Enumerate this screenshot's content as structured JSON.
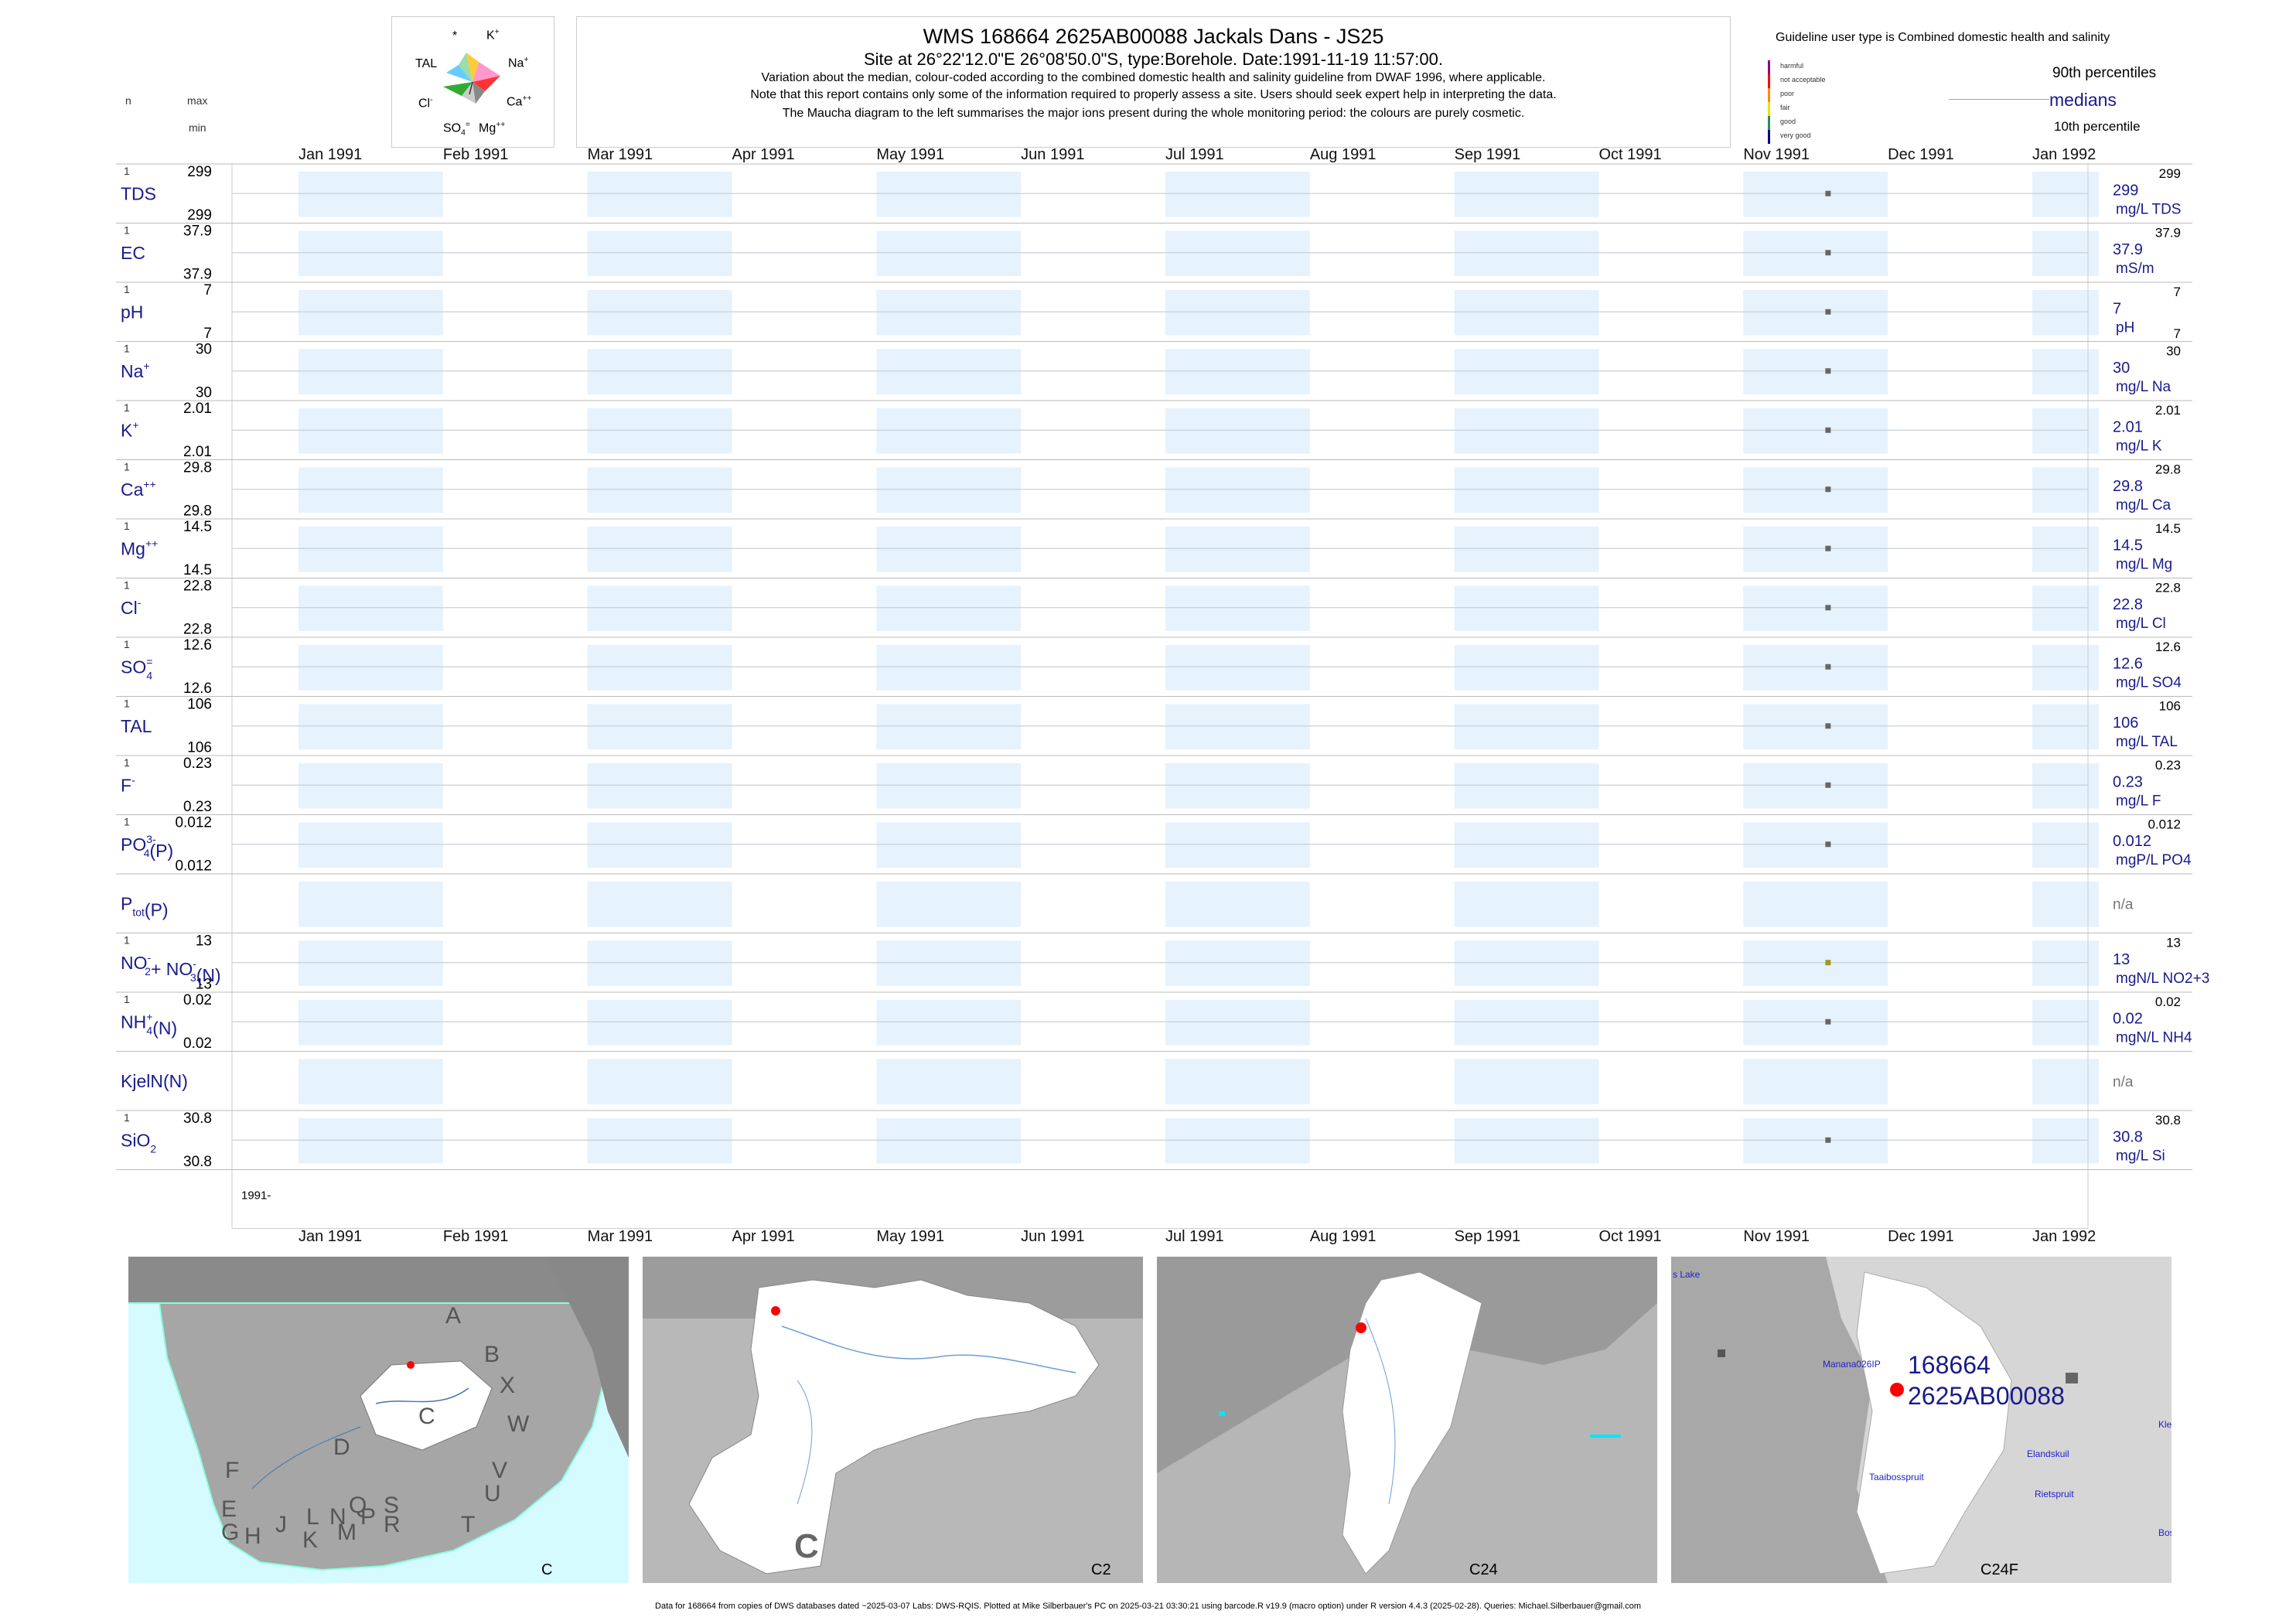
{
  "header": {
    "title": "WMS 168664 2625AB00088 Jackals Dans - JS25",
    "site": "Site at 26°22'12.0\"E 26°08'50.0\"S, type:Borehole. Date:1991-11-19 11:57:00.",
    "note1": "Variation about the median,  colour-coded according to the combined domestic health and salinity guideline from DWAF 1996, where applicable.",
    "note2": "Note that this report contains only some of the information required to properly assess a site. Users should seek expert help in interpreting the data.",
    "note3": "The Maucha diagram to the left summarises the major ions present during the whole monitoring period: the colours are purely cosmetic."
  },
  "left_labels": {
    "n": "n",
    "max": "max",
    "min": "min"
  },
  "maucha": {
    "k": "K",
    "star": "*",
    "tal": "TAL",
    "na": "Na",
    "cl": "Cl",
    "ca": "Ca",
    "so4": "SO",
    "mg": "Mg"
  },
  "guideline": {
    "title": "Guideline user type is Combined domestic health and salinity",
    "levels": [
      "harmful",
      "not acceptable",
      "poor",
      "fair",
      "good",
      "very good"
    ],
    "level_colors": [
      "#8b008b",
      "#ff0000",
      "#ff8c00",
      "#f0e000",
      "#2e8b57",
      "#00008b"
    ],
    "p90": "90th percentiles",
    "medians": "medians",
    "p10": "10th percentile"
  },
  "chart_data": {
    "type": "scatter",
    "x_range": [
      "1991-01-01",
      "1992-01-01"
    ],
    "x_ticks": [
      "Jan 1991",
      "Feb 1991",
      "Mar 1991",
      "Apr 1991",
      "May 1991",
      "Jun 1991",
      "Jul 1991",
      "Aug 1991",
      "Sep 1991",
      "Oct 1991",
      "Nov 1991",
      "Dec 1991",
      "Jan 1992"
    ],
    "sample_date": "1991-11-19",
    "year_label": "1991-",
    "shaded_months": [
      "Jan 1991",
      "Mar 1991",
      "May 1991",
      "Jul 1991",
      "Sep 1991",
      "Nov 1991",
      "Jan 1992"
    ],
    "rows": [
      {
        "name": "TDS",
        "n": "1",
        "max": "299",
        "min": "299",
        "median": "299",
        "unit": "mg/L TDS",
        "p90": "299",
        "p10": "",
        "point_color": "#666666"
      },
      {
        "name": "EC",
        "n": "1",
        "max": "37.9",
        "min": "37.9",
        "median": "37.9",
        "unit": "mS/m",
        "p90": "37.9",
        "p10": "",
        "point_color": "#666666"
      },
      {
        "name": "pH",
        "n": "1",
        "max": "7",
        "min": "7",
        "median": "7",
        "unit": "pH",
        "p90": "7",
        "p10": "7",
        "point_color": "#666666"
      },
      {
        "name": "Na",
        "sup": "+",
        "n": "1",
        "max": "30",
        "min": "30",
        "median": "30",
        "unit": "mg/L Na",
        "p90": "30",
        "p10": "",
        "point_color": "#666666"
      },
      {
        "name": "K",
        "sup": "+",
        "n": "1",
        "max": "2.01",
        "min": "2.01",
        "median": "2.01",
        "unit": "mg/L K",
        "p90": "2.01",
        "p10": "",
        "point_color": "#666666"
      },
      {
        "name": "Ca",
        "sup": "++",
        "n": "1",
        "max": "29.8",
        "min": "29.8",
        "median": "29.8",
        "unit": "mg/L Ca",
        "p90": "29.8",
        "p10": "",
        "point_color": "#666666"
      },
      {
        "name": "Mg",
        "sup": "++",
        "n": "1",
        "max": "14.5",
        "min": "14.5",
        "median": "14.5",
        "unit": "mg/L Mg",
        "p90": "14.5",
        "p10": "",
        "point_color": "#666666"
      },
      {
        "name": "Cl",
        "sup": "-",
        "n": "1",
        "max": "22.8",
        "min": "22.8",
        "median": "22.8",
        "unit": "mg/L Cl",
        "p90": "22.8",
        "p10": "",
        "point_color": "#666666"
      },
      {
        "name": "SO",
        "sub": "4",
        "sup": "=",
        "n": "1",
        "max": "12.6",
        "min": "12.6",
        "median": "12.6",
        "unit": "mg/L SO4",
        "p90": "12.6",
        "p10": "",
        "point_color": "#666666"
      },
      {
        "name": "TAL",
        "n": "1",
        "max": "106",
        "min": "106",
        "median": "106",
        "unit": "mg/L TAL",
        "p90": "106",
        "p10": "",
        "point_color": "#666666"
      },
      {
        "name": "F",
        "sup": "-",
        "n": "1",
        "max": "0.23",
        "min": "0.23",
        "median": "0.23",
        "unit": "mg/L F",
        "p90": "0.23",
        "p10": "",
        "point_color": "#666666"
      },
      {
        "name": "PO",
        "sub": "4",
        "sup": "3-",
        "suffix": "(P)",
        "n": "1",
        "max": "0.012",
        "min": "0.012",
        "median": "0.012",
        "unit": "mgP/L PO4",
        "p90": "0.012",
        "p10": "",
        "point_color": "#666666"
      },
      {
        "name": "P",
        "sub": "tot",
        "suffix": "(P)",
        "n": "",
        "max": "",
        "min": "",
        "median": "n/a",
        "unit": "",
        "p90": "",
        "p10": "",
        "point_color": ""
      },
      {
        "name": "NO",
        "sub": "2",
        "sup": "-",
        "suffix": "+ NO",
        "sub2": "3",
        "sup2": "-",
        "suffix2": "(N)",
        "n": "1",
        "max": "13",
        "min": "13",
        "median": "13",
        "unit": "mgN/L NO2+3",
        "p90": "13",
        "p10": "",
        "point_color": "#9a9a20"
      },
      {
        "name": "NH",
        "sub": "4",
        "sup": "+",
        "suffix": "(N)",
        "n": "1",
        "max": "0.02",
        "min": "0.02",
        "median": "0.02",
        "unit": "mgN/L NH4",
        "p90": "0.02",
        "p10": "",
        "point_color": "#666666"
      },
      {
        "name": "KjelN(N)",
        "n": "",
        "max": "",
        "min": "",
        "median": "n/a",
        "unit": "",
        "p90": "",
        "p10": "",
        "point_color": ""
      },
      {
        "name": "SiO",
        "sub": "2",
        "n": "1",
        "max": "30.8",
        "min": "30.8",
        "median": "30.8",
        "unit": "mg/L Si",
        "p90": "30.8",
        "p10": "",
        "point_color": "#666666"
      }
    ]
  },
  "maps": {
    "map1": {
      "corner": "C",
      "regions": [
        "A",
        "B",
        "X",
        "W",
        "V",
        "U",
        "T",
        "C",
        "D",
        "F",
        "E",
        "G",
        "H",
        "J",
        "K",
        "L",
        "M",
        "N",
        "P",
        "Q",
        "R",
        "S"
      ]
    },
    "map2": {
      "corner": "C2",
      "big": "C"
    },
    "map3": {
      "corner": "C24"
    },
    "map4": {
      "corner": "C24F",
      "site_id": "168664",
      "site_code": "2625AB00088",
      "place_labels": [
        "s Lake",
        "Manana026IP",
        "Taaibosspruit",
        "Elandskuil",
        "Rietspruit",
        "Kle",
        "Bos"
      ]
    }
  },
  "footer": "Data for 168664 from copies of DWS databases dated ~2025-03-07 Labs: DWS-RQIS. Plotted at Mike Silberbauer's PC on 2025-03-21 03:30:21 using barcode.R v19.9 (macro option) under R version 4.4.3 (2025-02-28). Queries: Michael.Silberbauer@gmail.com"
}
